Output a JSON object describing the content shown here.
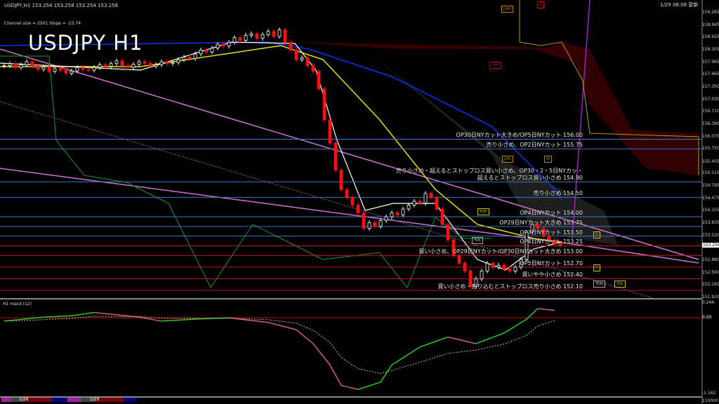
{
  "header": {
    "symbol_info": "USDJPY,H1  153.254 153.258 153.254 153.258",
    "channel_info": "Channel size = 2501 Slope = -23.74",
    "big_title": "USDJPY H1",
    "updated": "1/29 06:08 更新"
  },
  "price_axis": {
    "ticks": [
      "159.265",
      "158.945",
      "158.625",
      "158.305",
      "157.985",
      "157.665",
      "157.350",
      "157.030",
      "156.710",
      "156.390",
      "156.070",
      "155.750",
      "155.405",
      "155.115",
      "154.795",
      "154.475",
      "154.155",
      "153.835",
      "153.520",
      "152.880",
      "152.560",
      "152.240",
      "151.920"
    ],
    "current": "153.258"
  },
  "macd_panel": {
    "label": "H1  macd (12)",
    "ticks": [
      "0.244",
      "0.00",
      "-1.162"
    ],
    "bottom_label": "110000"
  },
  "time_axis": {
    "labels": [
      "1/28",
      "1/29"
    ]
  },
  "levels": [
    {
      "price": 156.0,
      "color": "#3a78c0",
      "text": "OP30日NYカット大きめ/OP5日NYカット 156.00"
    },
    {
      "price": 155.75,
      "color": "#3a78c0",
      "text": "売り小さめ、OP2日NYカット 155.75"
    },
    {
      "price": 154.9,
      "color": "#3a78c0",
      "text": "売り小さめ・超えるとストップロス買い小さめ、OP30・2・5日NYカッ・",
      "text2": "超えるとストップロス買い小さめ 154.90"
    },
    {
      "price": 154.5,
      "color": "#3a78c0",
      "text": "売り小さめ 154.50"
    },
    {
      "price": 154.0,
      "color": "#3a78c0",
      "text": "OP4日NYカット 154.00"
    },
    {
      "price": 153.75,
      "color": "#3a78c0",
      "text": "OP29日NYカット大きめ 153.75"
    },
    {
      "price": 153.5,
      "color": "#3a78c0",
      "text": "OP3日NYカット 153.50"
    },
    {
      "price": 153.25,
      "color": "#c01818",
      "text": "OP4日NYカット 153.25"
    },
    {
      "price": 153.0,
      "color": "#c01818",
      "text": "買い小さめ、OP29日NYカット/OP30日NYカット大きめ 153.00"
    },
    {
      "price": 152.7,
      "color": "#c01818",
      "text": "OP5日NYカット 152.70"
    },
    {
      "price": 152.4,
      "color": "#c01818",
      "text": "買いやや小さめ 152.40"
    },
    {
      "price": 152.1,
      "color": "#c01818",
      "text": "買い小さめ・割り込むとストップロス売り小さめ 152.10"
    }
  ],
  "boxes": [
    "LWH",
    "M",
    "LMH",
    "LML",
    "W",
    "YDH",
    "YDC",
    "YDO",
    "YDL",
    "D",
    "D"
  ],
  "chart_data": {
    "type": "candlestick",
    "title": "USDJPY H1",
    "ylim": [
      151.92,
      159.265
    ],
    "closes": [
      157.9,
      157.95,
      157.85,
      157.92,
      158.0,
      157.88,
      157.8,
      157.86,
      157.75,
      157.82,
      157.78,
      157.7,
      157.76,
      157.85,
      157.8,
      157.78,
      157.85,
      157.92,
      157.88,
      157.95,
      158.02,
      157.9,
      157.85,
      157.93,
      158.0,
      157.96,
      157.88,
      157.92,
      158.0,
      157.95,
      157.98,
      158.05,
      158.12,
      158.08,
      158.2,
      158.3,
      158.25,
      158.35,
      158.45,
      158.4,
      158.5,
      158.62,
      158.55,
      158.68,
      158.72,
      158.6,
      158.7,
      158.78,
      158.65,
      158.82,
      158.5,
      158.3,
      158.05,
      158.1,
      157.9,
      157.75,
      157.3,
      156.5,
      155.9,
      155.2,
      154.7,
      154.5,
      154.3,
      154.1,
      153.7,
      153.85,
      153.75,
      153.9,
      154.0,
      154.1,
      154.05,
      154.2,
      154.3,
      154.4,
      154.35,
      154.6,
      154.5,
      154.2,
      153.8,
      153.4,
      153.0,
      152.8,
      152.6,
      152.2,
      152.4,
      152.6,
      152.8,
      152.7,
      152.75,
      152.65,
      152.6,
      152.7,
      152.9,
      153.6,
      153.8,
      153.7,
      153.5,
      153.4,
      153.3,
      153.26
    ],
    "macd": {
      "ylim": [
        -1.162,
        0.244
      ],
      "index": [
        0,
        7,
        12,
        16,
        24,
        28,
        34,
        40,
        47,
        52,
        55,
        58,
        60,
        63,
        67,
        69,
        74,
        79,
        84,
        89,
        93,
        95,
        98
      ],
      "values": [
        -0.05,
        0.01,
        0.03,
        0.08,
        0.01,
        -0.05,
        -0.02,
        0.0,
        -0.07,
        -0.18,
        -0.39,
        -0.71,
        -1.02,
        -1.08,
        -0.97,
        -0.71,
        -0.44,
        -0.29,
        -0.39,
        -0.23,
        -0.02,
        0.14,
        0.11
      ]
    },
    "colors": {
      "up": "#ffffff",
      "down": "#ff1010",
      "macd_up": "#22cc22",
      "macd_down": "#d06080"
    }
  }
}
